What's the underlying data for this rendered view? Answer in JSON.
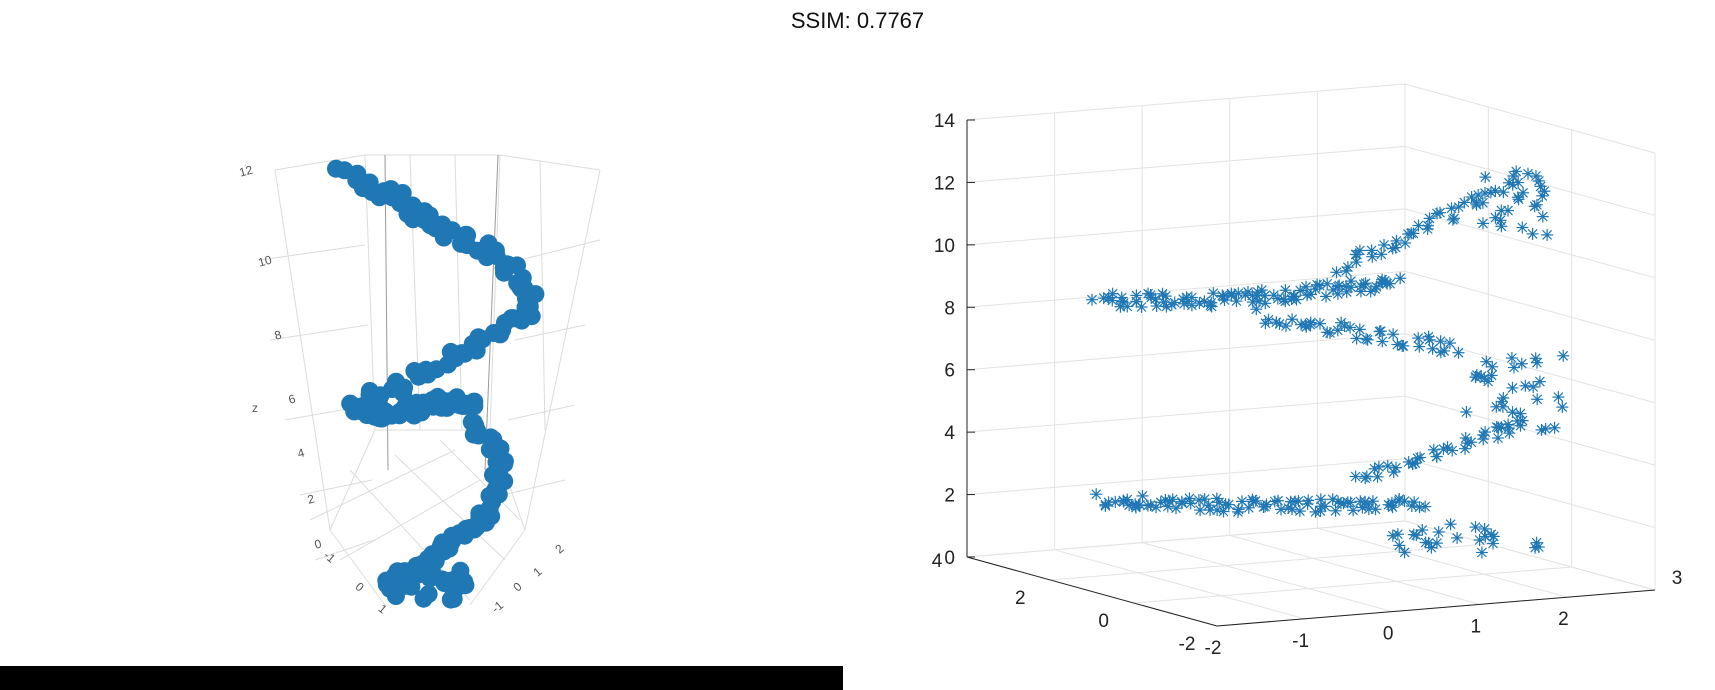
{
  "header": {
    "ssim_label": "SSIM: 0.7767"
  },
  "colors": {
    "marker": "#1f77b4",
    "grid": "#e0e0e0",
    "axis": "#222222",
    "bar": "#000000"
  },
  "chart_data": [
    {
      "type": "scatter",
      "subtype": "scatter3d",
      "marker": "filled-circle",
      "axes": {
        "z": {
          "label": "z",
          "ticks": [
            "0",
            "2",
            "4",
            "6",
            "8",
            "10",
            "12"
          ]
        },
        "x": {
          "ticks": [
            "-1",
            "0",
            "1"
          ]
        },
        "y": {
          "ticks": [
            "2",
            "1",
            "0",
            "-1"
          ]
        }
      },
      "title": "",
      "grid": true,
      "series": [
        {
          "name": "",
          "shape": "two helical loops along z, dense cluster near z≈5.5 and z≈12",
          "z_range": [
            0,
            12.5
          ]
        }
      ]
    },
    {
      "type": "scatter",
      "subtype": "scatter3d",
      "marker": "asterisk",
      "axes": {
        "z": {
          "ticks": [
            "0",
            "2",
            "4",
            "6",
            "8",
            "10",
            "12",
            "14"
          ],
          "lim": [
            0,
            14
          ]
        },
        "x": {
          "ticks": [
            "-2",
            "-1",
            "0",
            "1",
            "2",
            "3"
          ],
          "lim": [
            -2,
            3
          ]
        },
        "y": {
          "ticks": [
            "-2",
            "0",
            "2",
            "4"
          ],
          "lim": [
            -2,
            4
          ]
        }
      },
      "title": "",
      "grid": true,
      "series": [
        {
          "name": "",
          "shape": "two horizontal bands at z≈2 and z≈8 rising to z≈12 at x≈2",
          "z_range": [
            0,
            12.5
          ]
        }
      ]
    }
  ]
}
